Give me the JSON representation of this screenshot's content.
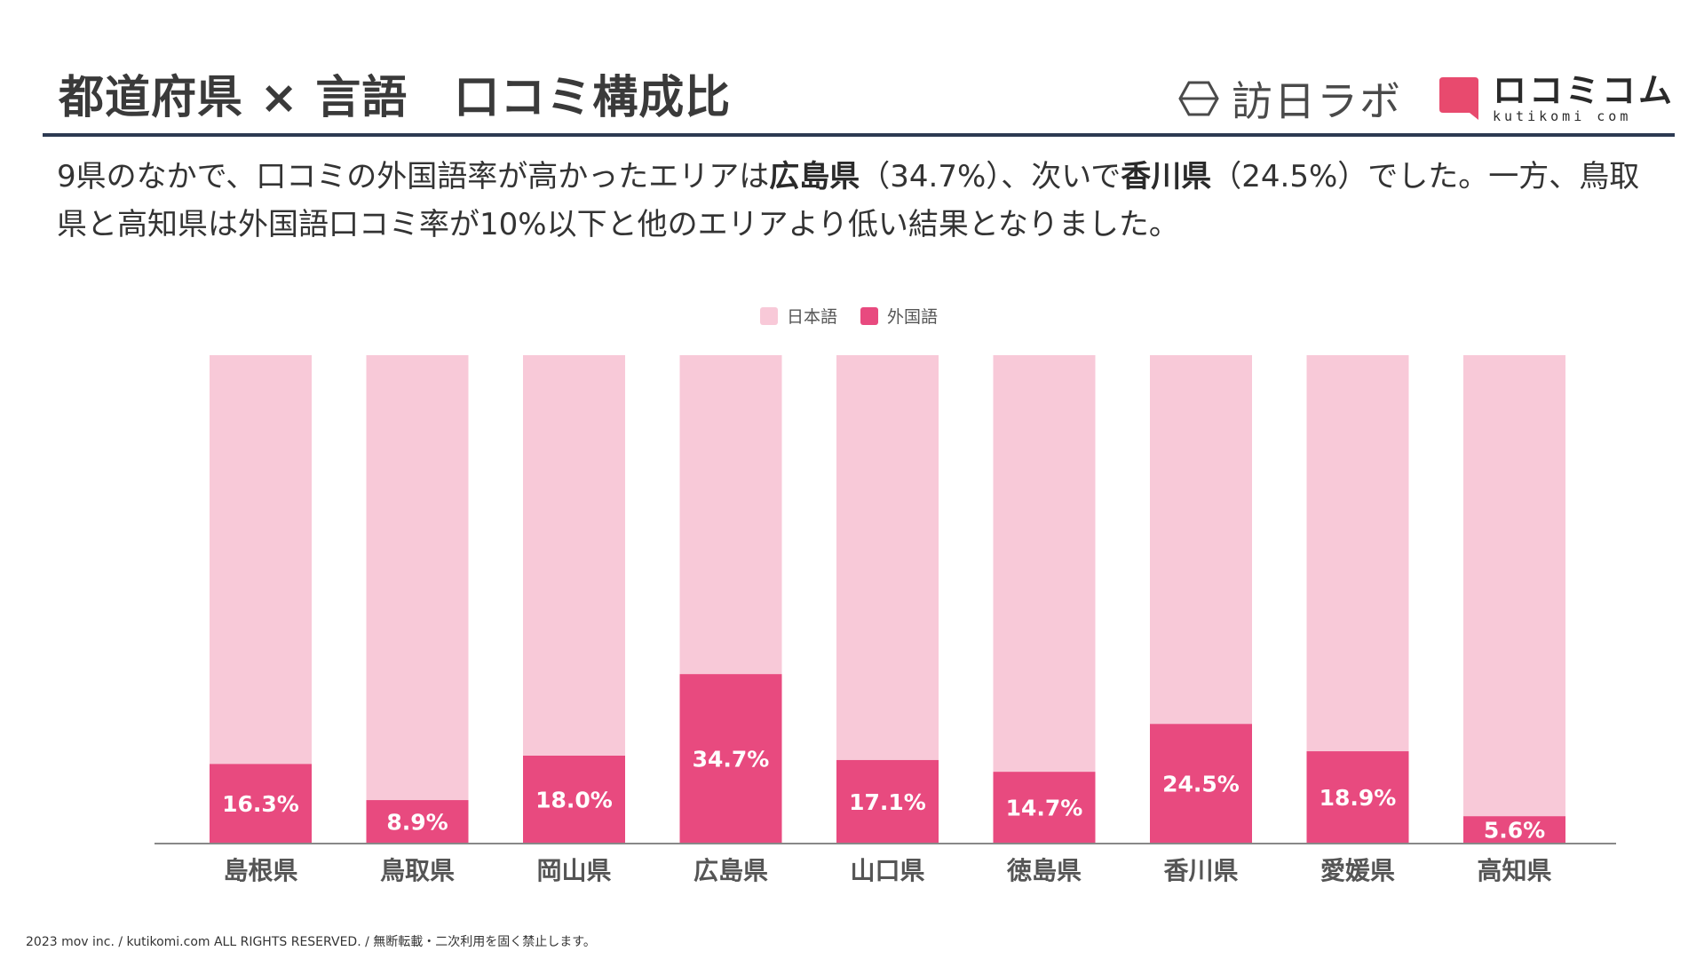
{
  "header": {
    "title": "都道府県 × 言語　口コミ構成比",
    "logo_houjin": "訪日ラボ",
    "logo_kutikomi": "ロコミコム",
    "logo_kutikomi_domain": "kutikomi com"
  },
  "summary": {
    "part1": "9県のなかで、口コミの外国語率が高かったエリアは",
    "bold1": "広島県",
    "part2": "（34.7%）、次いで",
    "bold2": "香川県",
    "part3": "（24.5%）でした。一方、鳥取県と高知県は外国語口コミ率が10%以下と他のエリアより低い結果となりました。"
  },
  "legend": {
    "japanese": "日本語",
    "foreign": "外国語"
  },
  "colors": {
    "japanese": "#f8c9d8",
    "foreign": "#e84a7f",
    "axis": "#888888",
    "rule": "#2c3a52"
  },
  "chart_data": {
    "type": "bar",
    "stacked": true,
    "categories": [
      "島根県",
      "鳥取県",
      "岡山県",
      "広島県",
      "山口県",
      "徳島県",
      "香川県",
      "愛媛県",
      "高知県"
    ],
    "series": [
      {
        "name": "外国語",
        "values": [
          16.3,
          8.9,
          18.0,
          34.7,
          17.1,
          14.7,
          24.5,
          18.9,
          5.6
        ]
      },
      {
        "name": "日本語",
        "values": [
          83.7,
          91.1,
          82.0,
          65.3,
          82.9,
          85.3,
          75.5,
          81.1,
          94.4
        ]
      }
    ],
    "data_labels": [
      "16.3%",
      "8.9%",
      "18.0%",
      "34.7%",
      "17.1%",
      "14.7%",
      "24.5%",
      "18.9%",
      "5.6%"
    ],
    "ylim": [
      0,
      100
    ],
    "legend": "top-center"
  },
  "footer": {
    "copyright": "2023 mov inc. / kutikomi.com ALL RIGHTS RESERVED. / 無断転載・二次利用を固く禁止します。"
  }
}
